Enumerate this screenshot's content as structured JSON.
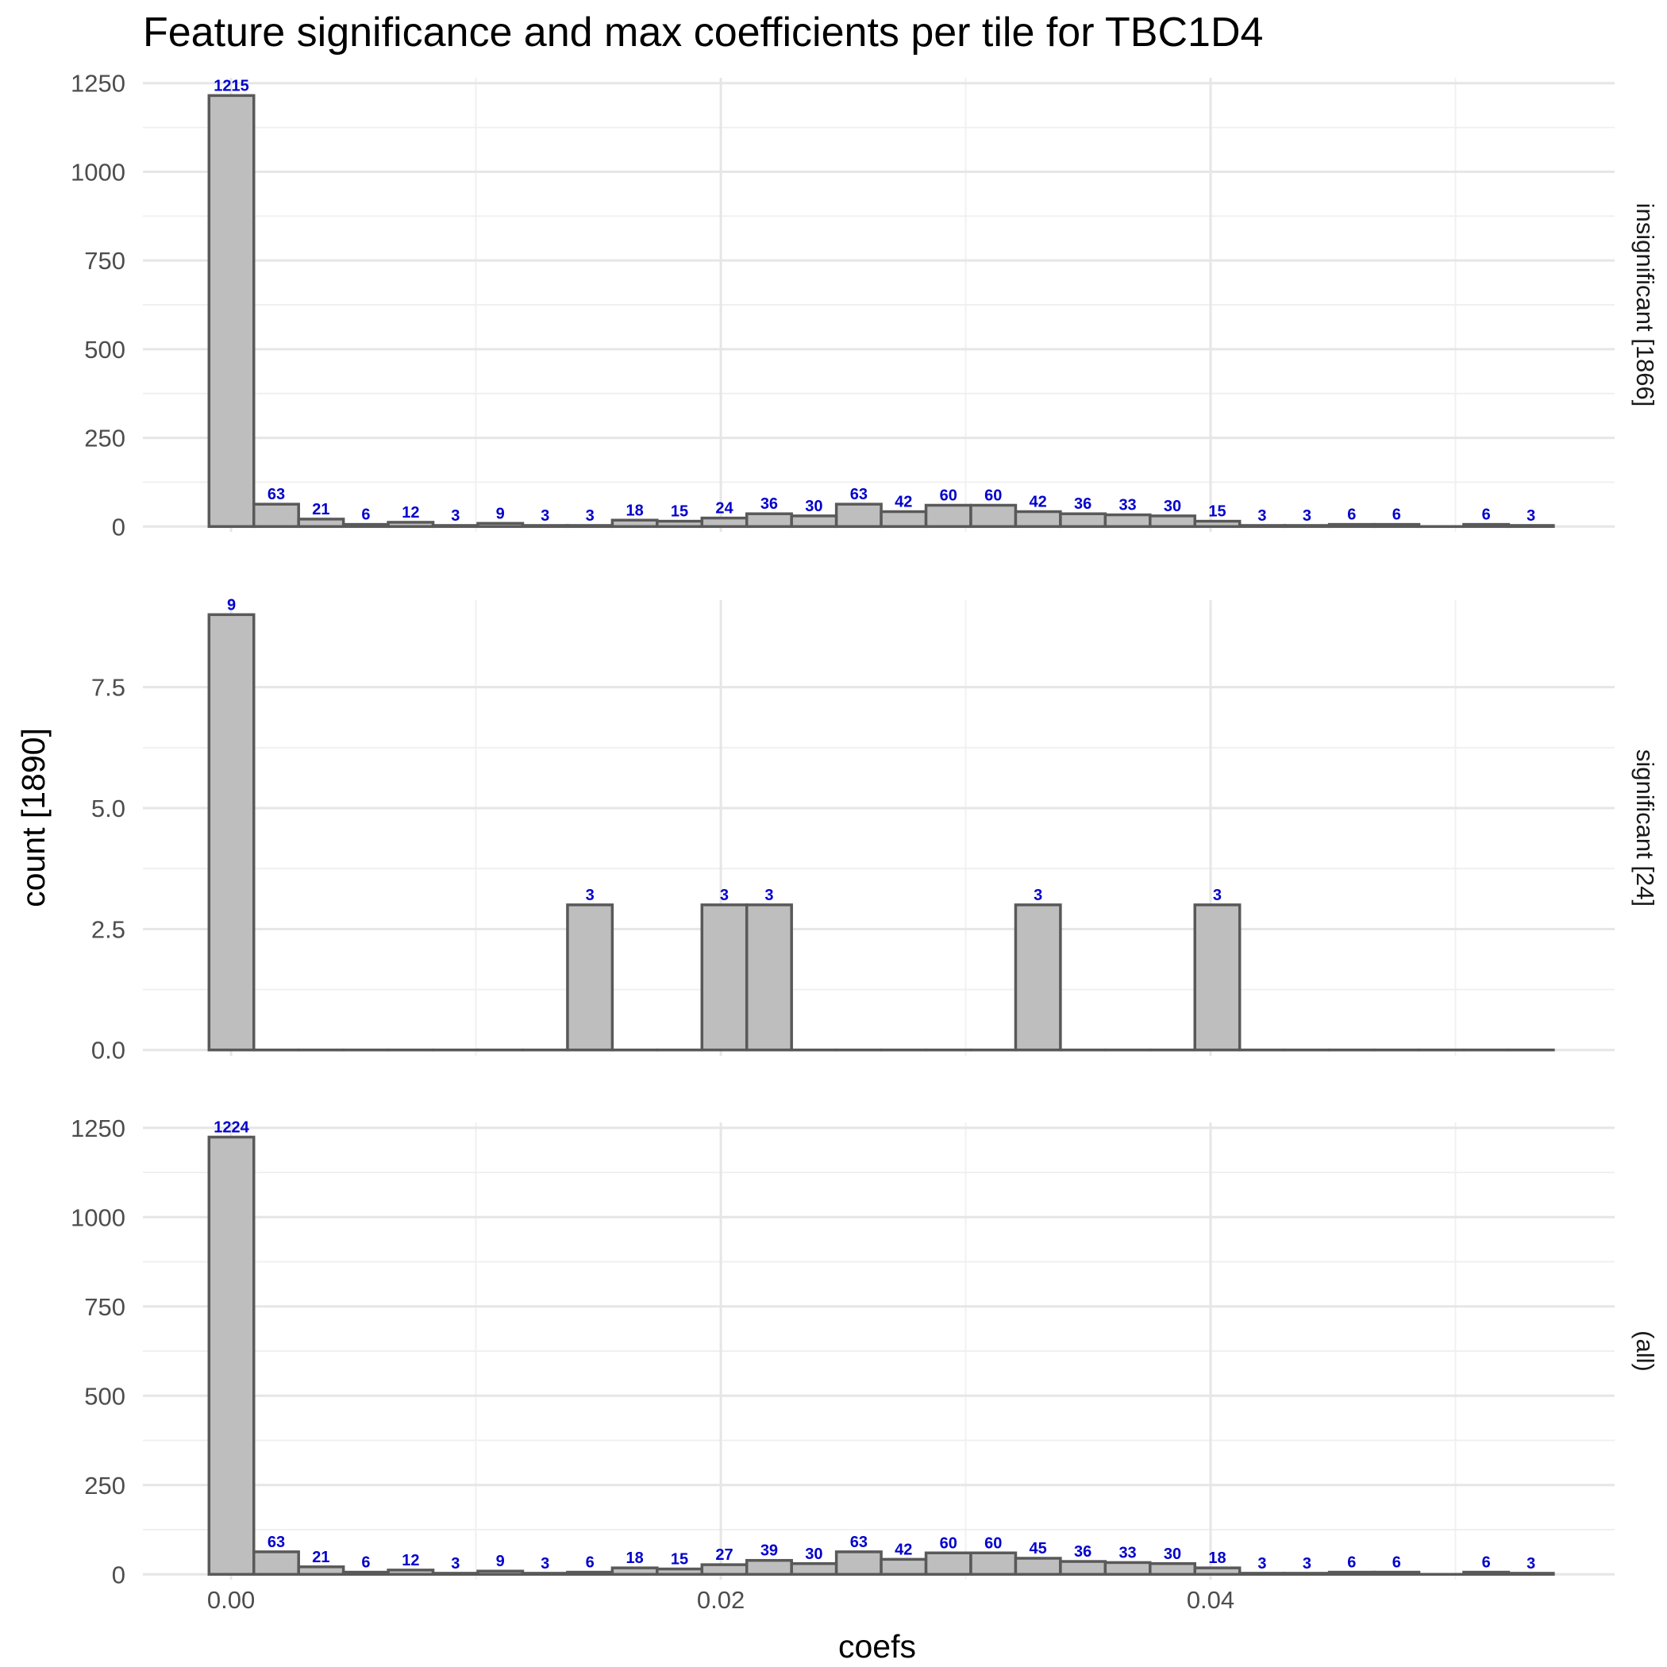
{
  "chart_data": {
    "type": "bar",
    "title": "Feature significance and max coefficients per tile for TBC1D4",
    "xlabel": "coefs",
    "ylabel": "count [1890]",
    "bin_width": 0.00183,
    "bin_start": -0.0009,
    "xlim": [
      -0.0036,
      0.0565
    ],
    "xticks": [
      0.0,
      0.02,
      0.04
    ],
    "xtick_labels": [
      "0.00",
      "0.02",
      "0.04"
    ],
    "grid": true,
    "bar_fill": "#bebebe",
    "bar_stroke": "#595959",
    "label_color": "#0000cc",
    "panels": [
      {
        "strip": "insignificant [1866]",
        "ylim": [
          -15,
          1265
        ],
        "yticks": [
          0,
          250,
          500,
          750,
          1000,
          1250
        ],
        "ytick_labels": [
          "0",
          "250",
          "500",
          "750",
          "1000",
          "1250"
        ],
        "values": [
          1215,
          63,
          21,
          6,
          12,
          3,
          9,
          3,
          3,
          18,
          15,
          24,
          36,
          30,
          63,
          42,
          60,
          60,
          42,
          36,
          33,
          30,
          15,
          3,
          3,
          6,
          6,
          0,
          6,
          3
        ]
      },
      {
        "strip": "significant [24]",
        "ylim": [
          -0.12,
          9.3
        ],
        "yticks": [
          0,
          2.5,
          5,
          7.5
        ],
        "ytick_labels": [
          "0.0",
          "2.5",
          "5.0",
          "7.5"
        ],
        "values": [
          9,
          0,
          0,
          0,
          0,
          0,
          0,
          0,
          3,
          0,
          0,
          3,
          3,
          0,
          0,
          0,
          0,
          0,
          3,
          0,
          0,
          0,
          3,
          0,
          0,
          0,
          0,
          0,
          0,
          0
        ]
      },
      {
        "strip": "(all)",
        "ylim": [
          -15,
          1265
        ],
        "yticks": [
          0,
          250,
          500,
          750,
          1000,
          1250
        ],
        "ytick_labels": [
          "0",
          "250",
          "500",
          "750",
          "1000",
          "1250"
        ],
        "values": [
          1224,
          63,
          21,
          6,
          12,
          3,
          9,
          3,
          6,
          18,
          15,
          27,
          39,
          30,
          63,
          42,
          60,
          60,
          45,
          36,
          33,
          30,
          18,
          3,
          3,
          6,
          6,
          0,
          6,
          3
        ]
      }
    ]
  }
}
